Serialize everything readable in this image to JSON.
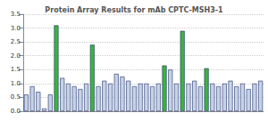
{
  "chart_data": {
    "type": "bar",
    "title": "Protein Array Results for mAb CPTC-MSH3-1",
    "categories": [
      null,
      null,
      null,
      null,
      null,
      null,
      null,
      null,
      null,
      null,
      null,
      null,
      null,
      null,
      null,
      null,
      null,
      null,
      null,
      null,
      null,
      null,
      null,
      null,
      null,
      null,
      null,
      null,
      null,
      null,
      null,
      null,
      null,
      null,
      null,
      null,
      null,
      null,
      null,
      null
    ],
    "values": [
      0.6,
      0.9,
      0.7,
      0.1,
      0.6,
      3.1,
      1.2,
      1.0,
      0.9,
      0.8,
      1.0,
      2.4,
      0.9,
      1.1,
      1.0,
      1.35,
      1.25,
      1.1,
      0.9,
      1.0,
      1.0,
      0.9,
      1.0,
      1.65,
      1.5,
      1.0,
      2.9,
      1.0,
      1.1,
      0.9,
      1.55,
      1.0,
      0.9,
      1.0,
      1.1,
      0.9,
      1.0,
      0.8,
      1.0,
      1.1
    ],
    "colors": [
      "#c6d3e6",
      "#c6d3e6",
      "#c6d3e6",
      "#c6d3e6",
      "#c6d3e6",
      "#3cb43c",
      "#c6d3e6",
      "#c6d3e6",
      "#c6d3e6",
      "#c6d3e6",
      "#c6d3e6",
      "#3cb43c",
      "#c6d3e6",
      "#c6d3e6",
      "#c6d3e6",
      "#c6d3e6",
      "#c6d3e6",
      "#c6d3e6",
      "#c6d3e6",
      "#c6d3e6",
      "#c6d3e6",
      "#c6d3e6",
      "#c6d3e6",
      "#3cb43c",
      "#c6d3e6",
      "#c6d3e6",
      "#3cb43c",
      "#c6d3e6",
      "#c6d3e6",
      "#c6d3e6",
      "#3cb43c",
      "#c6d3e6",
      "#c6d3e6",
      "#c6d3e6",
      "#c6d3e6",
      "#c6d3e6",
      "#c6d3e6",
      "#c6d3e6",
      "#c6d3e6",
      "#c6d3e6"
    ],
    "ylim": [
      0,
      3.5
    ],
    "yticks": [
      {
        "value": 0,
        "label": "0.0"
      },
      {
        "value": 0.5,
        "label": "0.5"
      },
      {
        "value": 1,
        "label": "1.0"
      },
      {
        "value": 1.5,
        "label": "1.5"
      },
      {
        "value": 2,
        "label": "2.0"
      },
      {
        "value": 2.5,
        "label": "2.5"
      },
      {
        "value": 3,
        "label": "3.0"
      },
      {
        "value": 3.5,
        "label": "3.5"
      }
    ],
    "grid": true
  }
}
